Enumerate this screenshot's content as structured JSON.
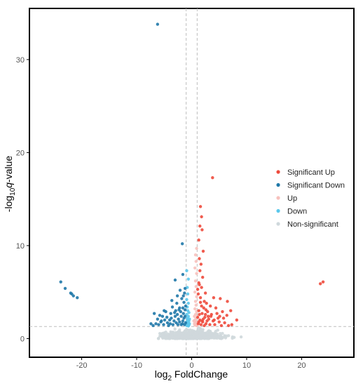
{
  "chart_data": {
    "type": "scatter",
    "title": "",
    "xlabel": {
      "prefix": "log",
      "sub": "2",
      "rest": " FoldChange"
    },
    "ylabel": {
      "prefix": "-log",
      "sub": "10",
      "italic": "q",
      "rest": "-value"
    },
    "xlim": [
      -29.5,
      29.5
    ],
    "ylim": [
      -2.0,
      35.5
    ],
    "xticks": [
      -20,
      -10,
      0,
      10,
      20
    ],
    "yticks": [
      0,
      10,
      20,
      30
    ],
    "threshold_lines": {
      "x": [
        -1,
        1
      ],
      "y": 1.3
    },
    "grid": false,
    "legend": {
      "placement": "right"
    },
    "series": [
      {
        "name": "Non-significant",
        "color": "#cfd8dc",
        "generated": {
          "n": 900,
          "seed": 11
        }
      },
      {
        "name": "Down",
        "color": "#5bc8ec",
        "points": [
          [
            -0.9,
            7.3
          ],
          [
            -0.6,
            6.4
          ],
          [
            -0.8,
            5.5
          ],
          [
            -0.7,
            4.8
          ],
          [
            -0.9,
            4.2
          ],
          [
            -0.6,
            3.8
          ],
          [
            -0.8,
            3.4
          ],
          [
            -0.7,
            3.0
          ],
          [
            -0.5,
            2.8
          ],
          [
            -0.9,
            2.6
          ],
          [
            -0.6,
            2.4
          ],
          [
            -0.8,
            2.2
          ],
          [
            -0.7,
            2.0
          ],
          [
            -0.5,
            1.9
          ],
          [
            -0.9,
            1.8
          ],
          [
            -0.6,
            1.7
          ],
          [
            -0.8,
            1.6
          ],
          [
            -0.7,
            1.5
          ],
          [
            -0.5,
            1.45
          ],
          [
            -0.9,
            1.4
          ],
          [
            -0.6,
            1.35
          ],
          [
            -0.4,
            1.6
          ],
          [
            -0.4,
            2.1
          ]
        ]
      },
      {
        "name": "Up",
        "color": "#f7c1bd",
        "points": [
          [
            0.9,
            9.7
          ],
          [
            0.7,
            9.0
          ],
          [
            0.8,
            8.3
          ],
          [
            0.6,
            7.6
          ],
          [
            0.9,
            7.0
          ],
          [
            0.7,
            6.2
          ],
          [
            0.8,
            5.6
          ],
          [
            0.6,
            5.0
          ],
          [
            0.9,
            4.5
          ],
          [
            0.7,
            4.0
          ],
          [
            0.8,
            3.6
          ],
          [
            0.6,
            3.2
          ],
          [
            0.9,
            2.9
          ],
          [
            0.7,
            2.6
          ],
          [
            0.5,
            2.4
          ],
          [
            0.8,
            2.2
          ],
          [
            0.6,
            2.0
          ],
          [
            0.9,
            1.8
          ],
          [
            0.7,
            1.7
          ],
          [
            0.5,
            1.6
          ],
          [
            0.8,
            1.5
          ],
          [
            0.6,
            1.45
          ],
          [
            0.9,
            1.4
          ],
          [
            0.4,
            1.9
          ]
        ]
      },
      {
        "name": "Significant Down",
        "color": "#1f78a8",
        "points": [
          [
            -6.2,
            33.8
          ],
          [
            -1.7,
            10.2
          ],
          [
            -23.8,
            6.1
          ],
          [
            -23.0,
            5.4
          ],
          [
            -22.0,
            4.9
          ],
          [
            -21.5,
            4.6
          ],
          [
            -20.8,
            4.4
          ],
          [
            -21.8,
            4.8
          ],
          [
            -3.0,
            6.3
          ],
          [
            -1.6,
            6.9
          ],
          [
            -2.1,
            5.2
          ],
          [
            -3.6,
            4.1
          ],
          [
            -2.6,
            4.6
          ],
          [
            -5.0,
            3.0
          ],
          [
            -3.8,
            2.7
          ],
          [
            -2.2,
            3.3
          ],
          [
            -1.4,
            3.9
          ],
          [
            -2.9,
            3.0
          ],
          [
            -4.5,
            2.3
          ],
          [
            -6.2,
            2.1
          ],
          [
            -7.4,
            1.6
          ],
          [
            -5.6,
            1.8
          ],
          [
            -4.0,
            2.0
          ],
          [
            -3.2,
            1.9
          ],
          [
            -2.4,
            2.1
          ],
          [
            -1.9,
            2.4
          ],
          [
            -1.5,
            2.7
          ],
          [
            -1.2,
            3.1
          ],
          [
            -6.8,
            2.7
          ],
          [
            -5.3,
            2.4
          ],
          [
            -3.5,
            3.4
          ],
          [
            -2.7,
            3.8
          ],
          [
            -1.8,
            4.3
          ],
          [
            -1.3,
            4.9
          ],
          [
            -4.7,
            2.9
          ],
          [
            -6.0,
            1.5
          ],
          [
            -5.1,
            1.5
          ],
          [
            -4.2,
            1.4
          ],
          [
            -3.4,
            1.5
          ],
          [
            -2.5,
            1.5
          ],
          [
            -1.7,
            1.6
          ],
          [
            -1.1,
            1.7
          ],
          [
            -1.4,
            2.2
          ],
          [
            -2.0,
            2.9
          ],
          [
            -3.0,
            2.4
          ],
          [
            -4.4,
            1.7
          ],
          [
            -7.0,
            1.4
          ],
          [
            -6.5,
            1.6
          ],
          [
            -5.8,
            2.5
          ],
          [
            -3.9,
            1.6
          ],
          [
            -2.8,
            1.7
          ],
          [
            -2.2,
            1.8
          ],
          [
            -1.6,
            1.9
          ],
          [
            -1.2,
            2.4
          ],
          [
            -1.1,
            3.5
          ],
          [
            -1.5,
            4.6
          ],
          [
            -2.3,
            3.1
          ],
          [
            -3.1,
            2.8
          ],
          [
            -4.9,
            2.0
          ],
          [
            -5.5,
            1.9
          ],
          [
            -1.9,
            1.5
          ],
          [
            -2.6,
            2.6
          ],
          [
            -3.7,
            2.2
          ],
          [
            -1.3,
            1.5
          ],
          [
            -1.2,
            5.4
          ],
          [
            -1.6,
            3.3
          ]
        ]
      },
      {
        "name": "Significant Up",
        "color": "#ee4a3c",
        "points": [
          [
            3.8,
            17.3
          ],
          [
            1.6,
            14.2
          ],
          [
            1.8,
            13.1
          ],
          [
            1.5,
            12.1
          ],
          [
            1.9,
            11.7
          ],
          [
            1.3,
            10.6
          ],
          [
            2.1,
            9.4
          ],
          [
            1.4,
            8.6
          ],
          [
            1.7,
            8.0
          ],
          [
            1.5,
            7.3
          ],
          [
            2.0,
            6.6
          ],
          [
            1.3,
            6.0
          ],
          [
            1.8,
            5.5
          ],
          [
            2.5,
            4.9
          ],
          [
            4.0,
            4.4
          ],
          [
            5.2,
            4.3
          ],
          [
            6.5,
            4.0
          ],
          [
            1.2,
            4.8
          ],
          [
            2.7,
            3.8
          ],
          [
            3.4,
            3.5
          ],
          [
            4.4,
            3.3
          ],
          [
            5.6,
            2.9
          ],
          [
            6.4,
            2.5
          ],
          [
            1.6,
            3.9
          ],
          [
            2.2,
            3.3
          ],
          [
            2.9,
            2.9
          ],
          [
            3.6,
            2.6
          ],
          [
            4.8,
            2.2
          ],
          [
            7.1,
            3.0
          ],
          [
            8.2,
            2.0
          ],
          [
            1.3,
            3.0
          ],
          [
            1.9,
            2.7
          ],
          [
            2.4,
            2.3
          ],
          [
            3.1,
            2.1
          ],
          [
            3.9,
            1.9
          ],
          [
            5.0,
            1.8
          ],
          [
            6.0,
            1.7
          ],
          [
            7.3,
            1.5
          ],
          [
            1.1,
            2.3
          ],
          [
            1.5,
            2.0
          ],
          [
            2.0,
            1.8
          ],
          [
            2.6,
            1.6
          ],
          [
            3.3,
            1.5
          ],
          [
            4.2,
            1.5
          ],
          [
            5.4,
            1.4
          ],
          [
            6.7,
            1.4
          ],
          [
            1.2,
            1.6
          ],
          [
            1.7,
            1.5
          ],
          [
            2.3,
            1.4
          ],
          [
            2.8,
            1.9
          ],
          [
            3.5,
            2.4
          ],
          [
            4.6,
            2.7
          ],
          [
            5.8,
            2.2
          ],
          [
            1.4,
            2.6
          ],
          [
            2.1,
            2.1
          ],
          [
            1.8,
            3.5
          ],
          [
            2.6,
            3.1
          ],
          [
            1.6,
            4.4
          ],
          [
            2.3,
            4.0
          ],
          [
            1.1,
            5.3
          ],
          [
            1.4,
            5.8
          ],
          [
            3.0,
            2.4
          ],
          [
            4.1,
            2.0
          ],
          [
            5.1,
            2.4
          ],
          [
            1.3,
            1.8
          ],
          [
            1.9,
            1.9
          ],
          [
            2.5,
            2.6
          ],
          [
            23.4,
            5.9
          ],
          [
            23.9,
            6.1
          ]
        ]
      }
    ],
    "legend_entries": [
      {
        "label": "Significant Up",
        "color": "#ee4a3c"
      },
      {
        "label": "Significant Down",
        "color": "#1f78a8"
      },
      {
        "label": "Up",
        "color": "#f7c1bd"
      },
      {
        "label": "Down",
        "color": "#5bc8ec"
      },
      {
        "label": "Non-significant",
        "color": "#cfd8dc"
      }
    ]
  }
}
